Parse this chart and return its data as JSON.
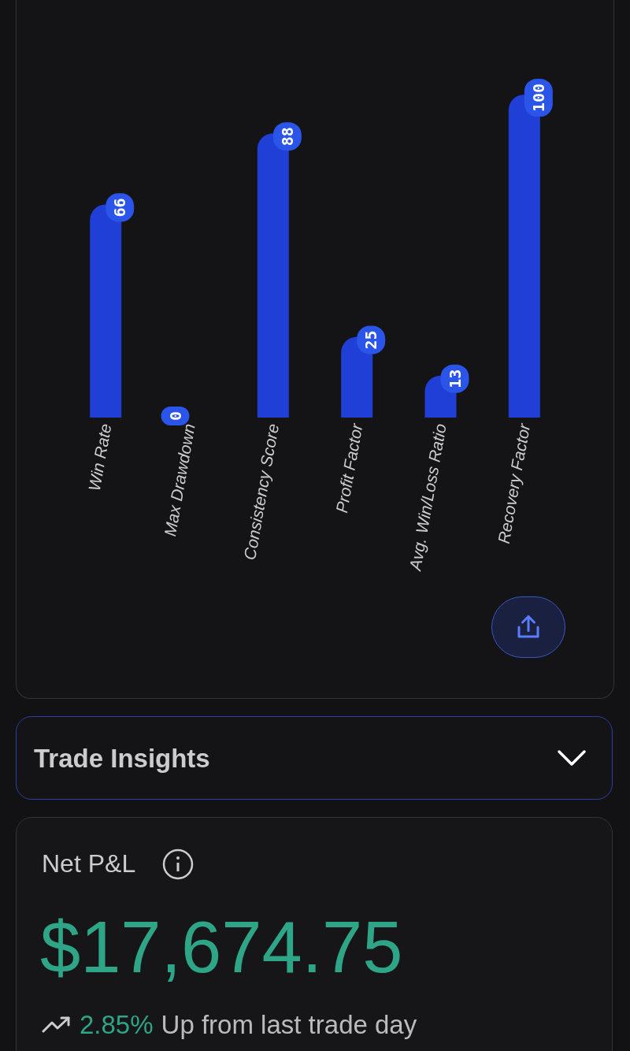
{
  "chart_data": [
    {
      "type": "bar",
      "categories": [
        "Win Rate",
        "Max Drawdown",
        "Consistency Score",
        "Profit Factor",
        "Avg. Win/Loss Ratio",
        "Recovery Factor"
      ],
      "values": [
        66,
        0,
        88,
        25,
        13,
        100
      ],
      "color": "#1f3fd6",
      "data_labels": true,
      "grid": false
    },
    {
      "type": "other",
      "title": "Net P&L",
      "annotations": [
        "Trade Insights",
        "$17,674.75",
        "2.85%",
        "Up from last trade day"
      ]
    }
  ]
}
